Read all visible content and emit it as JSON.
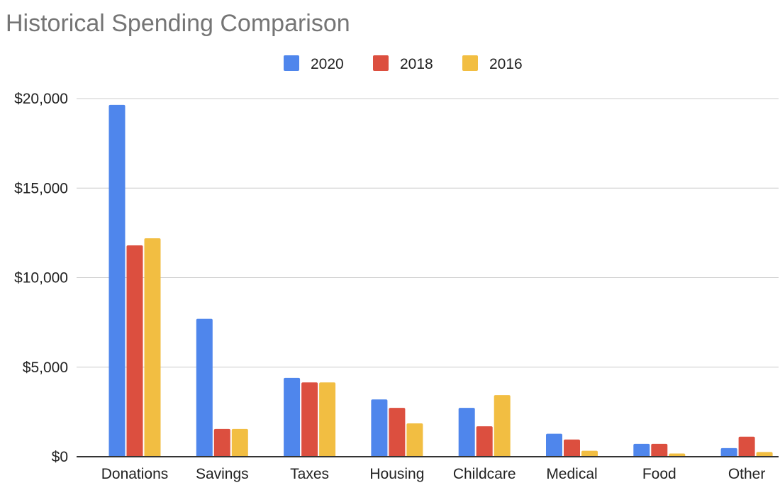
{
  "chart_data": {
    "type": "bar",
    "title": "Historical Spending Comparison",
    "xlabel": "",
    "ylabel": "",
    "categories": [
      "Donations",
      "Savings",
      "Taxes",
      "Housing",
      "Childcare",
      "Medical",
      "Food",
      "Other"
    ],
    "series": [
      {
        "name": "2020",
        "color": "#4f86ec",
        "values": [
          19650,
          7700,
          4400,
          3200,
          2730,
          1280,
          720,
          480
        ]
      },
      {
        "name": "2018",
        "color": "#dc4f3f",
        "values": [
          11800,
          1550,
          4150,
          2730,
          1700,
          960,
          720,
          1120
        ]
      },
      {
        "name": "2016",
        "color": "#f2be42",
        "values": [
          12200,
          1550,
          4150,
          1860,
          3440,
          330,
          180,
          260
        ]
      }
    ],
    "ylim": [
      0,
      20000
    ],
    "yticks": [
      0,
      5000,
      10000,
      15000,
      20000
    ],
    "ytick_labels": [
      "$0",
      "$5,000",
      "$10,000",
      "$15,000",
      "$20,000"
    ],
    "grid": true,
    "legend_position": "top-center"
  }
}
